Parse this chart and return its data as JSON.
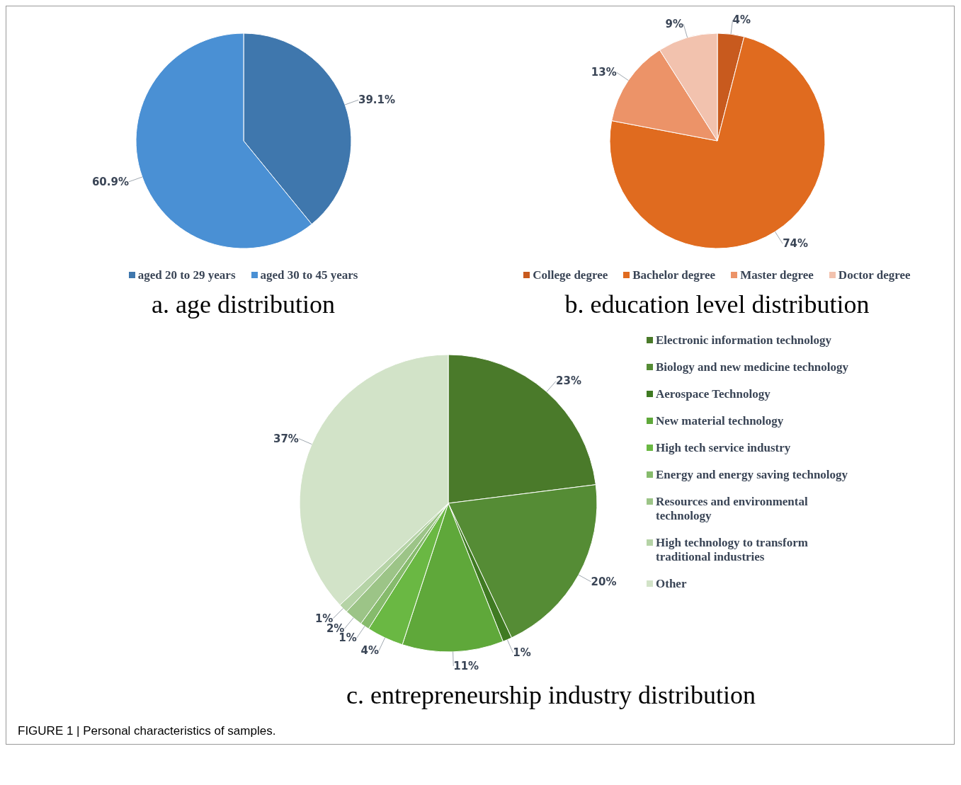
{
  "chart_data": [
    {
      "type": "pie",
      "title": "a. age distribution",
      "categories": [
        "aged 20 to 29 years",
        "aged 30 to 45 years"
      ],
      "values": [
        39.1,
        60.9
      ],
      "value_labels": [
        "39.1%",
        "60.9%"
      ],
      "colors": [
        "#3f77ad",
        "#4a90d4"
      ],
      "legend": "bottom"
    },
    {
      "type": "pie",
      "title": "b. education level distribution",
      "categories": [
        "College degree",
        "Bachelor degree",
        "Master degree",
        "Doctor degree"
      ],
      "values": [
        4,
        74,
        13,
        9
      ],
      "value_labels": [
        "4%",
        "74%",
        "13%",
        "9%"
      ],
      "colors": [
        "#c85a1e",
        "#e06b1f",
        "#ec9368",
        "#f2c2ae"
      ],
      "legend": "bottom"
    },
    {
      "type": "pie",
      "title": "c.  entrepreneurship industry distribution",
      "categories": [
        "Electronic information technology",
        "Biology and new medicine technology",
        "Aerospace Technology",
        "New material technology",
        "High tech service industry",
        "Energy and energy saving technology",
        "Resources and environmental technology",
        "High technology to transform traditional industries",
        "Other"
      ],
      "values": [
        23,
        20,
        1,
        11,
        4,
        1,
        2,
        1,
        37
      ],
      "value_labels": [
        "23%",
        "20%",
        "1%",
        "11%",
        "4%",
        "1%",
        "2%",
        "1%",
        "37%"
      ],
      "colors": [
        "#4a7a2a",
        "#558c35",
        "#3f7a22",
        "#5fa83a",
        "#6ab843",
        "#86bb6c",
        "#9cc487",
        "#b5d3a6",
        "#d2e3c8"
      ],
      "legend": "right",
      "annotations": [
        "FIGURE 1 | Personal characteristics of samples."
      ]
    }
  ]
}
